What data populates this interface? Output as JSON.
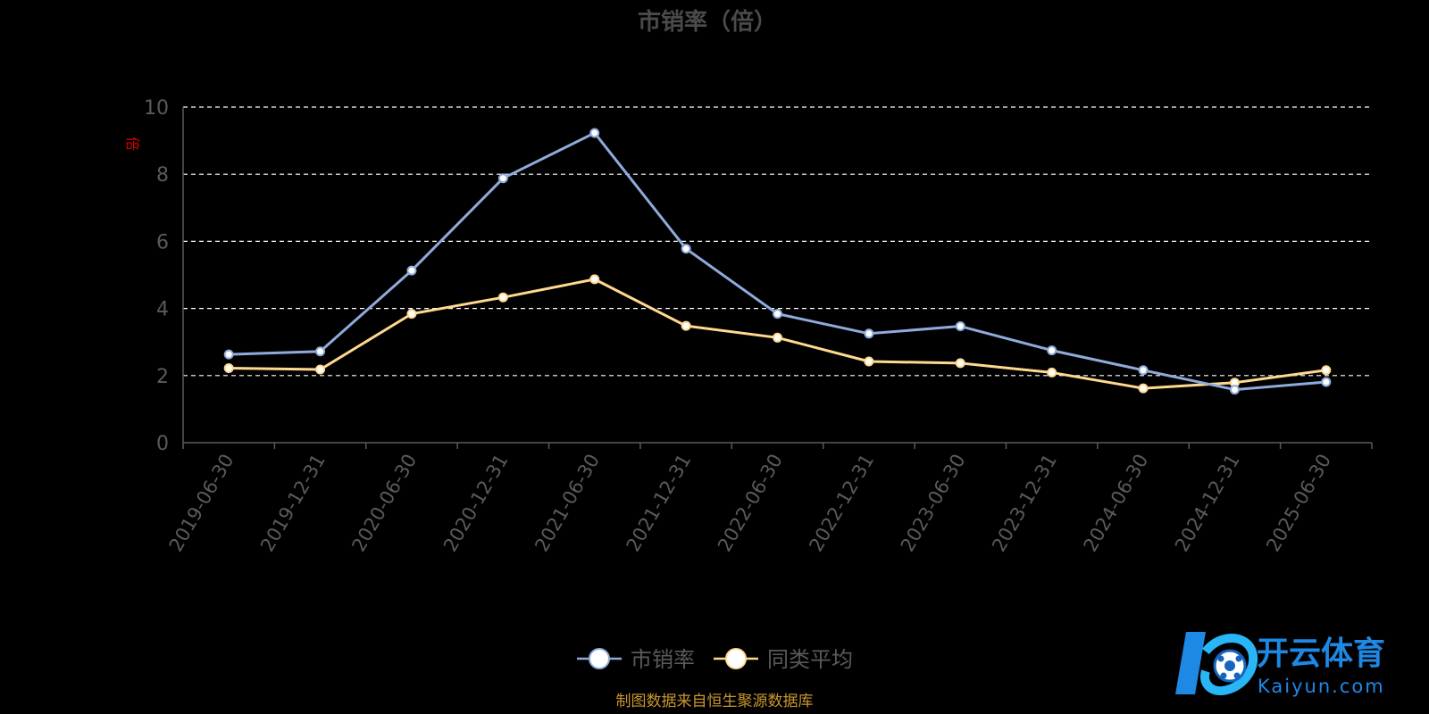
{
  "chart_data": {
    "type": "line",
    "title": "市销率（倍）",
    "ylabel": "倍",
    "ylim": [
      0,
      10
    ],
    "yticks": [
      0,
      2,
      4,
      6,
      8,
      10
    ],
    "grid": true,
    "legend_position": "bottom-center",
    "categories": [
      "2019-06-30",
      "2019-12-31",
      "2020-06-30",
      "2020-12-31",
      "2021-06-30",
      "2021-12-31",
      "2022-06-30",
      "2022-12-31",
      "2023-06-30",
      "2023-12-31",
      "2024-06-30",
      "2024-12-31",
      "2025-06-30"
    ],
    "series": [
      {
        "name": "市销率",
        "color": "#8fabdb",
        "values": [
          2.63,
          2.72,
          5.13,
          7.88,
          9.23,
          5.78,
          3.84,
          3.25,
          3.47,
          2.75,
          2.16,
          1.58,
          1.81
        ]
      },
      {
        "name": "同类平均",
        "color": "#ffd98f",
        "values": [
          2.22,
          2.18,
          3.84,
          4.33,
          4.87,
          3.48,
          3.13,
          2.42,
          2.37,
          2.09,
          1.62,
          1.79,
          2.16
        ]
      }
    ],
    "source_note": "制图数据来自恒生聚源数据库"
  },
  "colors": {
    "title": "#4a4a4a",
    "axis": "#5a5a5a",
    "grid": "#ffffff",
    "ylabel": "#d40000",
    "source": "#c9962f"
  },
  "watermark": {
    "icon": "kaiyun-logo-icon",
    "cn": "开云体育",
    "en": "Kaiyun.com"
  }
}
